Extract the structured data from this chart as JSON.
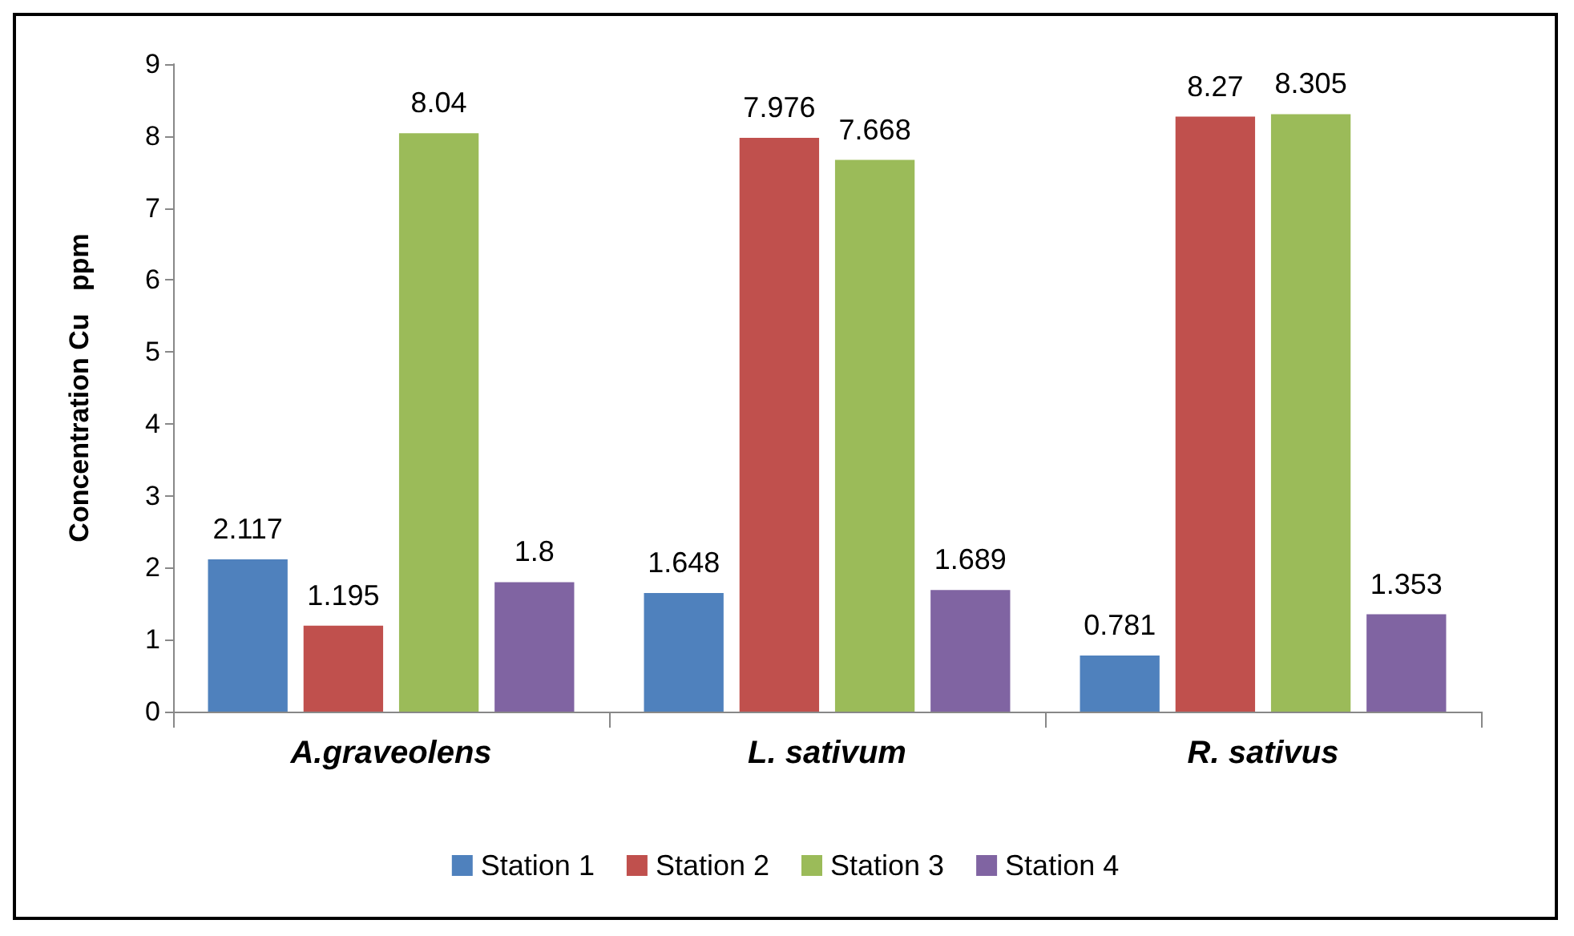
{
  "chart_data": {
    "type": "bar",
    "ylabel": "Concentration Cu   ppm",
    "categories": [
      "A.graveolens",
      "L. sativum",
      "R. sativus"
    ],
    "series": [
      {
        "name": "Station 1",
        "color": "#4f81bd",
        "values": [
          2.117,
          1.648,
          0.781
        ]
      },
      {
        "name": "Station 2",
        "color": "#c0504d",
        "values": [
          1.195,
          7.976,
          8.27
        ]
      },
      {
        "name": "Station 3",
        "color": "#9bbb59",
        "values": [
          8.04,
          7.668,
          8.305
        ]
      },
      {
        "name": "Station 4",
        "color": "#8064a2",
        "values": [
          1.8,
          1.689,
          1.353
        ]
      }
    ],
    "ylim": [
      0,
      9
    ],
    "yticks": [
      0,
      1,
      2,
      3,
      4,
      5,
      6,
      7,
      8,
      9
    ],
    "grid": false,
    "legend": "bottom",
    "data_labels": true
  }
}
